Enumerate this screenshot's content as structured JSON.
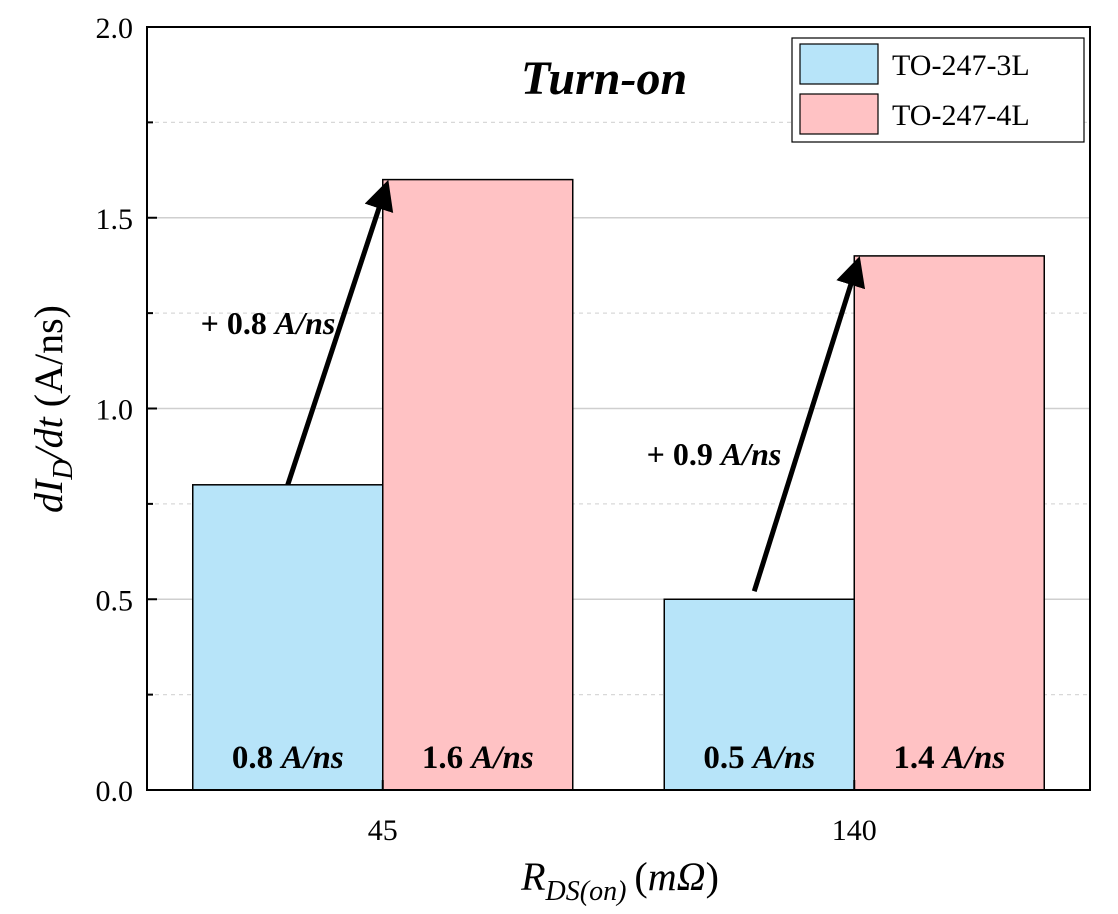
{
  "chart_data": {
    "type": "bar",
    "title": "Turn-on",
    "ylabel_parts": {
      "main": "dI",
      "sub": "D",
      "rest": "/dt",
      "unit": "(A/ns)"
    },
    "xlabel_parts": {
      "main": "R",
      "sub": "DS(on)",
      "unit_open": "(",
      "unit": "mΩ",
      "unit_close": ")"
    },
    "categories": [
      "45",
      "140"
    ],
    "ylim": [
      0,
      2.0
    ],
    "y_ticks": [
      "0.0",
      "0.5",
      "1.0",
      "1.5",
      "2.0"
    ],
    "grid": true,
    "legend_position": "top-right",
    "series": [
      {
        "name": "TO-247-3L",
        "color": "#b7e4f9",
        "values": [
          0.8,
          0.5
        ],
        "value_labels": [
          {
            "num": "0.8",
            "unit": "A/ns"
          },
          {
            "num": "0.5",
            "unit": "A/ns"
          }
        ]
      },
      {
        "name": "TO-247-4L",
        "color": "#ffc2c4",
        "values": [
          1.6,
          1.4
        ],
        "value_labels": [
          {
            "num": "1.6",
            "unit": "A/ns"
          },
          {
            "num": "1.4",
            "unit": "A/ns"
          }
        ]
      }
    ],
    "annotations": [
      {
        "text_num": "+ 0.8",
        "text_unit": "A/ns",
        "from": [
          0,
          0.8
        ],
        "to": [
          0,
          1.6
        ]
      },
      {
        "text_num": "+ 0.9",
        "text_unit": "A/ns",
        "from": [
          1,
          0.5
        ],
        "to": [
          1,
          1.4
        ]
      }
    ]
  }
}
